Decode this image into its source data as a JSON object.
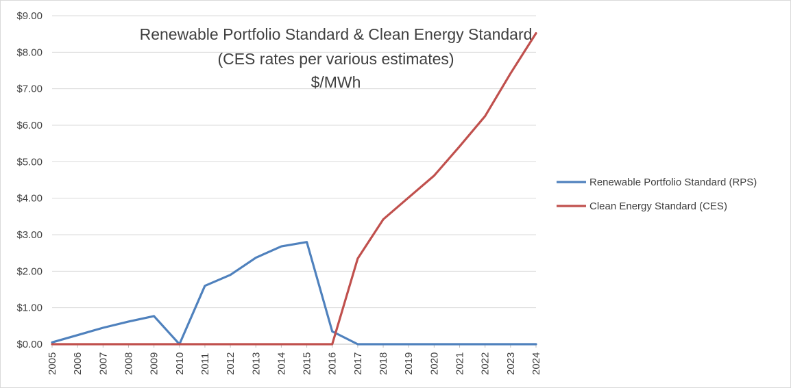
{
  "chart_data": {
    "type": "line",
    "title_lines": [
      "Renewable Portfolio Standard & Clean Energy Standard",
      "(CES rates per various estimates)",
      "$/MWh"
    ],
    "xlabel": "",
    "ylabel": "",
    "ylim": [
      0,
      9
    ],
    "y_ticks": [
      "$0.00",
      "$1.00",
      "$2.00",
      "$3.00",
      "$4.00",
      "$5.00",
      "$6.00",
      "$7.00",
      "$8.00",
      "$9.00"
    ],
    "categories": [
      "2005",
      "2006",
      "2007",
      "2008",
      "2009",
      "2010",
      "2011",
      "2012",
      "2013",
      "2014",
      "2015",
      "2016",
      "2017",
      "2018",
      "2019",
      "2020",
      "2021",
      "2022",
      "2023",
      "2024"
    ],
    "grid": "horizontal",
    "legend_position": "right",
    "series": [
      {
        "name": "Renewable Portfolio Standard (RPS)",
        "color": "#4f81bd",
        "values": [
          0.05,
          0.25,
          0.45,
          0.62,
          0.77,
          0.0,
          1.6,
          1.9,
          2.37,
          2.68,
          2.8,
          0.35,
          0.0,
          0.0,
          0.0,
          0.0,
          0.0,
          0.0,
          0.0,
          0.0
        ]
      },
      {
        "name": "Clean Energy Standard (CES)",
        "color": "#c0504d",
        "values": [
          0,
          0,
          0,
          0,
          0,
          0,
          0,
          0,
          0,
          0,
          0,
          0,
          2.35,
          3.42,
          4.02,
          4.62,
          5.42,
          6.25,
          7.42,
          8.52
        ]
      }
    ]
  }
}
